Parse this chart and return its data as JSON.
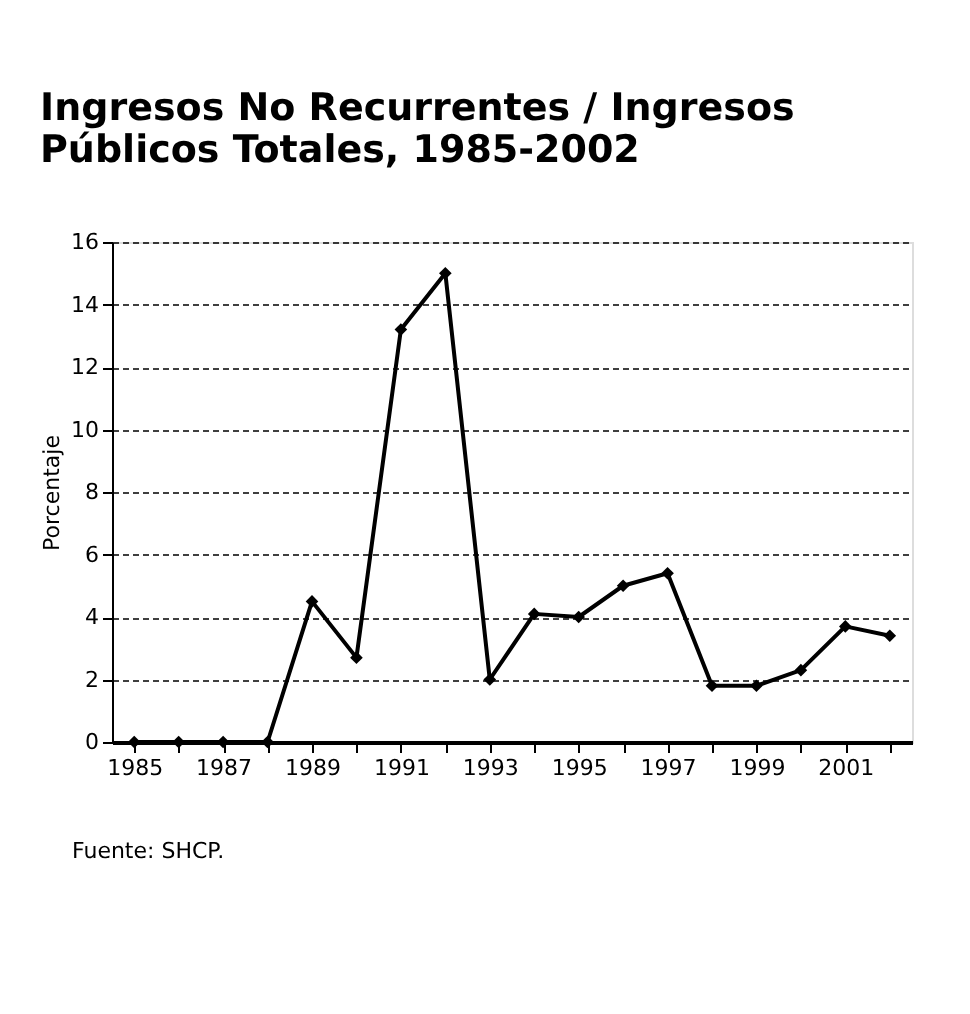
{
  "chart_data": {
    "type": "line",
    "title": [
      "Ingresos No Recurrentes / Ingresos",
      "Públicos Totales, 1985-2002"
    ],
    "ylabel": "Porcentaje",
    "categories": [
      "1985",
      null,
      "1987",
      null,
      "1989",
      null,
      "1991",
      null,
      "1993",
      null,
      "1995",
      null,
      "1997",
      null,
      "1999",
      null,
      "2001",
      null
    ],
    "series": [
      {
        "color": "#000000",
        "values": [
          0,
          0,
          0,
          0,
          4.5,
          2.7,
          13.2,
          15.0,
          2.0,
          4.1,
          4.0,
          5.0,
          5.4,
          1.8,
          1.8,
          2.3,
          3.7,
          3.4
        ]
      }
    ],
    "ylim": [
      0,
      16
    ],
    "yticks": [
      0,
      2,
      4,
      6,
      8,
      10,
      12,
      14,
      16
    ],
    "grid": "y",
    "marker": "diamond",
    "line_style": "solid",
    "annotations": [
      "Fuente: SHCP."
    ]
  }
}
